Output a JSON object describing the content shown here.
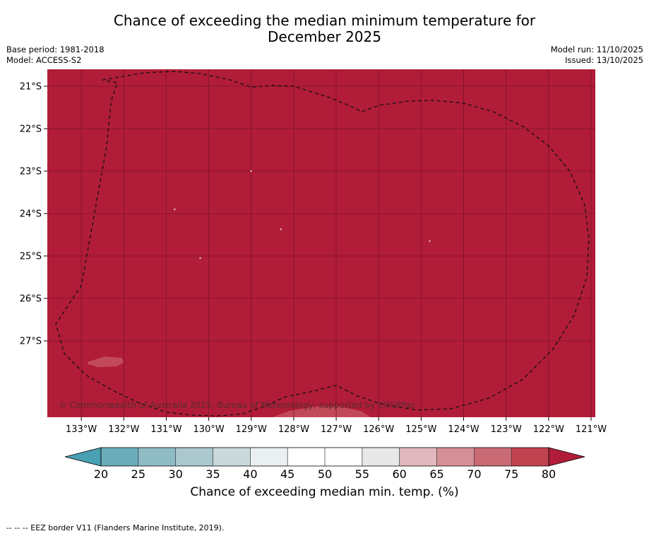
{
  "title": {
    "line1": "Chance of exceeding the median minimum temperature for",
    "line2": "December 2025"
  },
  "meta_left": {
    "base_period": "Base period: 1981-2018",
    "model": "Model: ACCESS-S2"
  },
  "meta_right": {
    "model_run": "Model run: 11/10/2025",
    "issued": "Issued: 13/10/2025"
  },
  "map": {
    "lon_range": [
      -133.8,
      -120.9
    ],
    "lat_range": [
      -20.6,
      -28.8
    ],
    "lon_ticks": [
      {
        "value": -133,
        "label": "133°W"
      },
      {
        "value": -132,
        "label": "132°W"
      },
      {
        "value": -131,
        "label": "131°W"
      },
      {
        "value": -130,
        "label": "130°W"
      },
      {
        "value": -129,
        "label": "129°W"
      },
      {
        "value": -128,
        "label": "128°W"
      },
      {
        "value": -127,
        "label": "127°W"
      },
      {
        "value": -126,
        "label": "126°W"
      },
      {
        "value": -125,
        "label": "125°W"
      },
      {
        "value": -124,
        "label": "124°W"
      },
      {
        "value": -123,
        "label": "123°W"
      },
      {
        "value": -122,
        "label": "122°W"
      },
      {
        "value": -121,
        "label": "121°W"
      }
    ],
    "lat_ticks": [
      {
        "value": -21,
        "label": "21°S"
      },
      {
        "value": -22,
        "label": "22°S"
      },
      {
        "value": -23,
        "label": "23°S"
      },
      {
        "value": -24,
        "label": "24°S"
      },
      {
        "value": -25,
        "label": "25°S"
      },
      {
        "value": -26,
        "label": "26°S"
      },
      {
        "value": -27,
        "label": "27°S"
      }
    ],
    "fill_category": ">80",
    "fill_color": "#b11c39",
    "grid_color": "#7a1525",
    "eez_border": [
      [
        -132.5,
        -20.85
      ],
      [
        -131.5,
        -20.68
      ],
      [
        -130.8,
        -20.65
      ],
      [
        -130.2,
        -20.7
      ],
      [
        -129.5,
        -20.85
      ],
      [
        -129.0,
        -21.02
      ],
      [
        -128.5,
        -20.98
      ],
      [
        -128.0,
        -21.0
      ],
      [
        -127.2,
        -21.25
      ],
      [
        -126.7,
        -21.45
      ],
      [
        -126.4,
        -21.6
      ],
      [
        -126.0,
        -21.45
      ],
      [
        -125.3,
        -21.35
      ],
      [
        -124.7,
        -21.33
      ],
      [
        -124.0,
        -21.4
      ],
      [
        -123.3,
        -21.6
      ],
      [
        -122.6,
        -21.95
      ],
      [
        -122.0,
        -22.4
      ],
      [
        -121.5,
        -23.0
      ],
      [
        -121.15,
        -23.8
      ],
      [
        -121.05,
        -24.6
      ],
      [
        -121.1,
        -25.5
      ],
      [
        -121.4,
        -26.4
      ],
      [
        -121.9,
        -27.2
      ],
      [
        -122.6,
        -27.9
      ],
      [
        -123.4,
        -28.35
      ],
      [
        -124.3,
        -28.6
      ],
      [
        -125.1,
        -28.63
      ],
      [
        -125.9,
        -28.5
      ],
      [
        -126.5,
        -28.3
      ],
      [
        -127.0,
        -28.05
      ],
      [
        -127.6,
        -28.2
      ],
      [
        -128.2,
        -28.32
      ],
      [
        -128.7,
        -28.55
      ],
      [
        -129.2,
        -28.72
      ],
      [
        -129.8,
        -28.77
      ],
      [
        -130.4,
        -28.75
      ],
      [
        -131.0,
        -28.68
      ],
      [
        -131.6,
        -28.48
      ],
      [
        -132.2,
        -28.2
      ],
      [
        -132.9,
        -27.8
      ],
      [
        -133.4,
        -27.3
      ],
      [
        -133.6,
        -26.6
      ],
      [
        -133.0,
        -25.7
      ],
      [
        -132.8,
        -24.6
      ],
      [
        -132.6,
        -23.5
      ],
      [
        -132.4,
        -22.4
      ],
      [
        -132.3,
        -21.35
      ],
      [
        -132.15,
        -20.92
      ],
      [
        -132.5,
        -20.85
      ]
    ],
    "small_patches": [
      {
        "category": "75-80",
        "points": [
          [
            -132.85,
            -27.5
          ],
          [
            -132.45,
            -27.37
          ],
          [
            -132.05,
            -27.4
          ],
          [
            -132.0,
            -27.5
          ],
          [
            -132.15,
            -27.6
          ],
          [
            -132.6,
            -27.62
          ],
          [
            -132.85,
            -27.55
          ]
        ]
      },
      {
        "category": "75-80",
        "points": [
          [
            -128.5,
            -28.8
          ],
          [
            -128.1,
            -28.65
          ],
          [
            -127.5,
            -28.55
          ],
          [
            -126.9,
            -28.55
          ],
          [
            -126.4,
            -28.66
          ],
          [
            -126.2,
            -28.8
          ]
        ]
      }
    ],
    "copyright": "© Commonwealth of Australia 2025, Bureau of Meteorology, supported by COSPPac"
  },
  "colorbar": {
    "labels": [
      "20",
      "25",
      "30",
      "35",
      "40",
      "45",
      "50",
      "55",
      "60",
      "65",
      "70",
      "75",
      "80"
    ],
    "segment_colors": [
      "#6aacba",
      "#8fbbc5",
      "#aac8cd",
      "#c9d9dc",
      "#eaf0f1",
      "#ffffff",
      "#ffffff",
      "#e8e8e8",
      "#e1b8bd",
      "#d59097",
      "#ca6a74",
      "#c0434f"
    ],
    "under_color": "#49a0b2",
    "over_color": "#b11c39",
    "title": "Chance of exceeding median min. temp. (%)"
  },
  "footer": "--  --  -- EEZ border V11 (Flanders Marine Institute, 2019)."
}
